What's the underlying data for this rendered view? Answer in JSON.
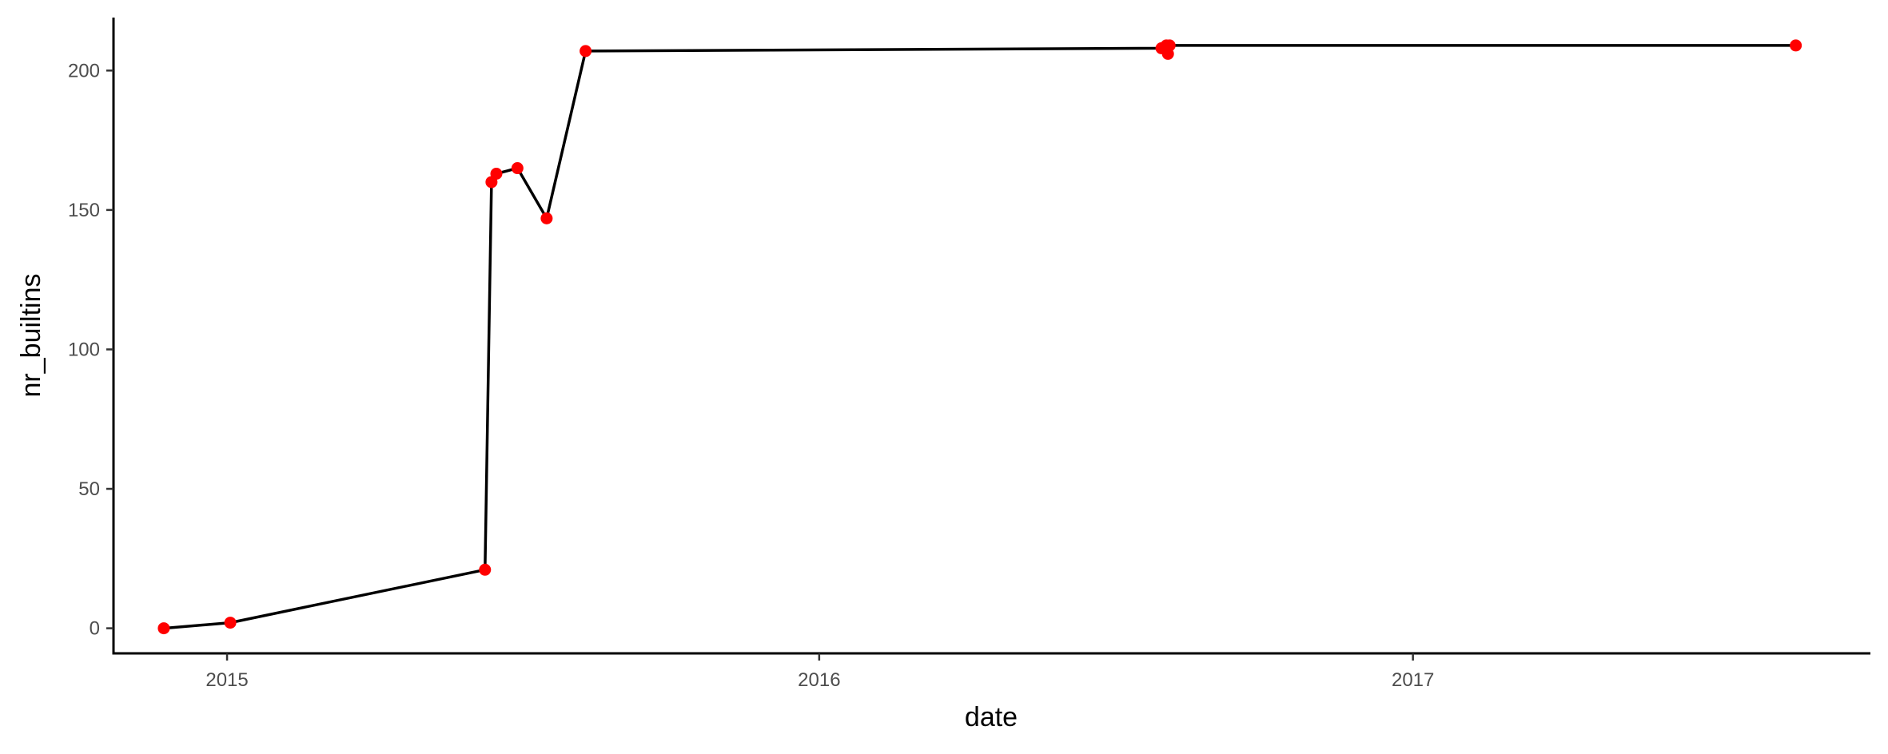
{
  "chart_data": {
    "type": "line",
    "title": "",
    "xlabel": "date",
    "ylabel": "nr_builtins",
    "x_axis_kind": "date",
    "xlim": [
      "2014-10-23",
      "2017-10-10"
    ],
    "ylim": [
      -9,
      219
    ],
    "x_ticks": [
      {
        "value": "2015-01-01",
        "label": "2015"
      },
      {
        "value": "2016-01-01",
        "label": "2016"
      },
      {
        "value": "2017-01-01",
        "label": "2017"
      }
    ],
    "y_ticks": [
      0,
      50,
      100,
      150,
      200
    ],
    "grid": false,
    "legend": "none",
    "line_color": "#000000",
    "point_color": "#ff0000",
    "series": [
      {
        "x": [
          "2014-11-23",
          "2015-01-03",
          "2015-06-09",
          "2015-06-13",
          "2015-06-16",
          "2015-06-29",
          "2015-07-17",
          "2015-08-10",
          "2016-07-30",
          "2016-08-02",
          "2016-08-03",
          "2016-08-04",
          "2017-08-25"
        ],
        "y": [
          0,
          2,
          21,
          160,
          163,
          165,
          147,
          207,
          208,
          209,
          206,
          209,
          209
        ]
      }
    ]
  }
}
